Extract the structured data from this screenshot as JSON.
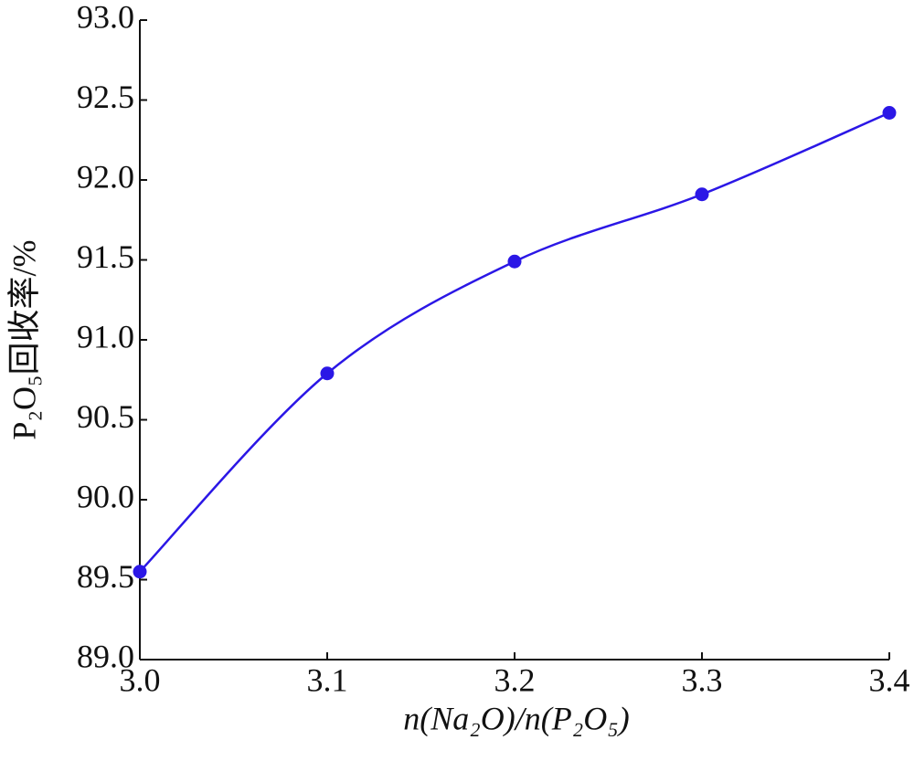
{
  "chart_data": {
    "type": "line",
    "x_label": "n(Na₂O)/n(P₂O₅)",
    "y_label": "P₂O₅回收率/%",
    "x": [
      3.0,
      3.1,
      3.2,
      3.3,
      3.4
    ],
    "series": [
      {
        "color": "#2b17e6",
        "values": [
          89.55,
          90.79,
          91.49,
          91.91,
          92.42
        ]
      }
    ],
    "xlim": [
      3.0,
      3.4
    ],
    "xticks": [
      {
        "value": 3.0,
        "label": "3.0"
      },
      {
        "value": 3.1,
        "label": "3.1"
      },
      {
        "value": 3.2,
        "label": "3.2"
      },
      {
        "value": 3.3,
        "label": "3.3"
      },
      {
        "value": 3.4,
        "label": "3.4"
      }
    ],
    "ylim": [
      89.0,
      93.0
    ],
    "yticks": [
      {
        "value": 89.0,
        "label": "89.0"
      },
      {
        "value": 89.5,
        "label": "89.5"
      },
      {
        "value": 90.0,
        "label": "90.0"
      },
      {
        "value": 90.5,
        "label": "90.5"
      },
      {
        "value": 91.0,
        "label": "91.0"
      },
      {
        "value": 91.5,
        "label": "91.5"
      },
      {
        "value": 92.0,
        "label": "92.0"
      },
      {
        "value": 92.5,
        "label": "92.5"
      },
      {
        "value": 93.0,
        "label": "93.0"
      }
    ]
  }
}
